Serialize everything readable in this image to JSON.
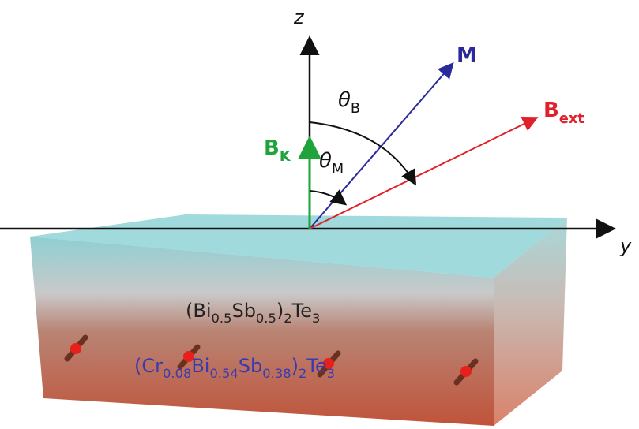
{
  "axes": {
    "z": "z",
    "y": "y"
  },
  "vectors": [
    {
      "parts": [
        {
          "text": "M"
        }
      ]
    },
    {
      "parts": [
        {
          "text": "B",
          "sub": "ext"
        }
      ]
    },
    {
      "parts": [
        {
          "text": "B",
          "sub": "K"
        }
      ]
    }
  ],
  "angles": [
    {
      "parts": [
        {
          "text": "θ",
          "sub": "B"
        }
      ]
    },
    {
      "parts": [
        {
          "text": "θ",
          "sub": "M"
        }
      ]
    }
  ],
  "layers": [
    {
      "parts": [
        {
          "text": "(Bi",
          "sub": "0.5"
        },
        {
          "text": "Sb",
          "sub": "0.5"
        },
        {
          "text": ")",
          "sub": "2"
        },
        {
          "text": "Te",
          "sub": "3"
        }
      ]
    },
    {
      "parts": [
        {
          "text": "(Cr",
          "sub": "0.08"
        },
        {
          "text": "Bi",
          "sub": "0.54"
        },
        {
          "text": "Sb",
          "sub": "0.38"
        },
        {
          "text": ")",
          "sub": "2"
        },
        {
          "text": "Te",
          "sub": "3"
        }
      ]
    }
  ]
}
